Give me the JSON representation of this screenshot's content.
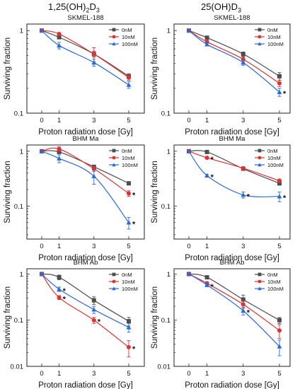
{
  "column_titles": {
    "left": {
      "base": "1,25(OH)",
      "sub1": "2",
      "mid": "D",
      "sub2": "3"
    },
    "right": {
      "base": "25(OH)D",
      "sub1": "3"
    }
  },
  "chart_data": [
    {
      "type": "line",
      "title": "SKMEL-188",
      "xlabel": "Proton radiation dose [Gy]",
      "ylabel": "Surviving fraction",
      "x": [
        0,
        1,
        3,
        5
      ],
      "yscale": "log",
      "ylim": [
        0.1,
        1.2
      ],
      "yticks": [
        1,
        0.1
      ],
      "ytick_labels": [
        "1",
        "0.1"
      ],
      "xticks": [
        0,
        1,
        3,
        5
      ],
      "legend_position": "top-right",
      "series": [
        {
          "name": "0nM",
          "color": "#4d4d4d",
          "marker": "square",
          "values": [
            1.0,
            0.83,
            0.52,
            0.28
          ],
          "errors": [
            0,
            0.03,
            0.04,
            0.02
          ],
          "stars": []
        },
        {
          "name": "10nM",
          "color": "#e03030",
          "marker": "circle",
          "values": [
            1.0,
            0.91,
            0.52,
            0.27
          ],
          "errors": [
            0,
            0.03,
            0.1,
            0.02
          ],
          "stars": []
        },
        {
          "name": "100nM",
          "color": "#2a6ad8",
          "marker": "triangle",
          "values": [
            1.0,
            0.66,
            0.41,
            0.22
          ],
          "errors": [
            0,
            0.06,
            0.04,
            0.02
          ],
          "stars": []
        }
      ]
    },
    {
      "type": "line",
      "title": "SKMEL-188",
      "xlabel": "Proton radiation dose [Gy]",
      "ylabel": "Surviving fraction",
      "x": [
        0,
        1,
        3,
        5
      ],
      "yscale": "log",
      "ylim": [
        0.1,
        1.2
      ],
      "yticks": [
        1,
        0.1
      ],
      "ytick_labels": [
        "1",
        "0.1"
      ],
      "xticks": [
        0,
        1,
        3,
        5
      ],
      "legend_position": "top-right",
      "series": [
        {
          "name": "0nM",
          "color": "#4d4d4d",
          "marker": "square",
          "values": [
            1.0,
            0.82,
            0.52,
            0.28
          ],
          "errors": [
            0,
            0.02,
            0.03,
            0.03
          ],
          "stars": []
        },
        {
          "name": "10nM",
          "color": "#e03030",
          "marker": "circle",
          "values": [
            1.0,
            0.73,
            0.45,
            0.23
          ],
          "errors": [
            0,
            0.03,
            0.03,
            0.02
          ],
          "stars": []
        },
        {
          "name": "100nM",
          "color": "#2a6ad8",
          "marker": "triangle",
          "values": [
            1.0,
            0.68,
            0.41,
            0.18
          ],
          "errors": [
            0,
            0.03,
            0.03,
            0.02
          ],
          "stars": [
            5
          ]
        }
      ]
    },
    {
      "type": "line",
      "title": "BHM Ma",
      "xlabel": "Proton radiation dose [Gy]",
      "ylabel": "Surviving fraction",
      "x": [
        0,
        1,
        3,
        5
      ],
      "yscale": "log",
      "ylim": [
        0.025,
        1.3
      ],
      "yticks": [
        1,
        0.1
      ],
      "ytick_labels": [
        "1",
        "0.1"
      ],
      "xticks": [
        0,
        1,
        3,
        5
      ],
      "legend_position": "top-right",
      "series": [
        {
          "name": "0nM",
          "color": "#4d4d4d",
          "marker": "square",
          "values": [
            1.0,
            0.97,
            0.52,
            0.26
          ],
          "errors": [
            0,
            0.05,
            0.03,
            0.01
          ],
          "stars": []
        },
        {
          "name": "10nM",
          "color": "#e03030",
          "marker": "circle",
          "values": [
            1.0,
            1.1,
            0.48,
            0.17
          ],
          "errors": [
            0,
            0.1,
            0.05,
            0.02
          ],
          "stars": [
            5
          ]
        },
        {
          "name": "100nM",
          "color": "#2a6ad8",
          "marker": "triangle",
          "values": [
            1.0,
            0.74,
            0.35,
            0.05
          ],
          "errors": [
            0,
            0.12,
            0.1,
            0.012
          ],
          "stars": [
            5
          ]
        }
      ]
    },
    {
      "type": "line",
      "title": "BHM Ma",
      "xlabel": "Proton radiation dose [Gy]",
      "ylabel": "Surviving fraction",
      "x": [
        0,
        1,
        3,
        5
      ],
      "yscale": "log",
      "ylim": [
        0.025,
        1.3
      ],
      "yticks": [
        1,
        0.1
      ],
      "ytick_labels": [
        "1",
        "0.1"
      ],
      "xticks": [
        0,
        1,
        3,
        5
      ],
      "legend_position": "top-right",
      "series": [
        {
          "name": "0nM",
          "color": "#4d4d4d",
          "marker": "square",
          "values": [
            1.0,
            0.97,
            0.48,
            0.26
          ],
          "errors": [
            0,
            0.03,
            0.03,
            0.02
          ],
          "stars": []
        },
        {
          "name": "10nM",
          "color": "#e03030",
          "marker": "circle",
          "values": [
            1.0,
            0.76,
            0.49,
            0.29
          ],
          "errors": [
            0,
            0.03,
            0.03,
            0.02
          ],
          "stars": [
            1
          ]
        },
        {
          "name": "100nM",
          "color": "#2a6ad8",
          "marker": "triangle",
          "values": [
            1.0,
            0.36,
            0.16,
            0.15
          ],
          "errors": [
            0,
            0.02,
            0.02,
            0.03
          ],
          "stars": [
            1,
            3,
            5
          ]
        }
      ]
    },
    {
      "type": "line",
      "title": "BHM Ab",
      "xlabel": "Proton radiation dose [Gy]",
      "ylabel": "Surviving fraction",
      "x": [
        0,
        1,
        3,
        5
      ],
      "yscale": "log",
      "ylim": [
        0.01,
        1.3
      ],
      "yticks": [
        1,
        0.1,
        0.01
      ],
      "ytick_labels": [
        "1",
        "0.1",
        "0.01"
      ],
      "xticks": [
        0,
        1,
        3,
        5
      ],
      "legend_position": "top-right",
      "series": [
        {
          "name": "0nM",
          "color": "#4d4d4d",
          "marker": "square",
          "values": [
            1.0,
            0.85,
            0.27,
            0.095
          ],
          "errors": [
            0,
            0.1,
            0.05,
            0.02
          ],
          "stars": []
        },
        {
          "name": "10nM",
          "color": "#e03030",
          "marker": "circle",
          "values": [
            1.0,
            0.31,
            0.1,
            0.026
          ],
          "errors": [
            0,
            0.03,
            0.015,
            0.01
          ],
          "stars": [
            1,
            3,
            5
          ]
        },
        {
          "name": "100nM",
          "color": "#2a6ad8",
          "marker": "triangle",
          "values": [
            1.0,
            0.47,
            0.17,
            0.07
          ],
          "errors": [
            0,
            0.05,
            0.03,
            0.015
          ],
          "stars": [
            1
          ]
        }
      ]
    },
    {
      "type": "line",
      "title": "BHM Ab",
      "xlabel": "Proton radiation dose [Gy]",
      "ylabel": "Surviving fraction",
      "x": [
        0,
        1,
        3,
        5
      ],
      "yscale": "log",
      "ylim": [
        0.01,
        1.3
      ],
      "yticks": [
        1,
        0.1,
        0.01
      ],
      "ytick_labels": [
        "1",
        "0.1",
        "0.01"
      ],
      "xticks": [
        0,
        1,
        3,
        5
      ],
      "legend_position": "top-right",
      "series": [
        {
          "name": "0nM",
          "color": "#4d4d4d",
          "marker": "square",
          "values": [
            1.0,
            0.85,
            0.28,
            0.1
          ],
          "errors": [
            0,
            0.05,
            0.07,
            0.015
          ],
          "stars": []
        },
        {
          "name": "10nM",
          "color": "#e03030",
          "marker": "circle",
          "values": [
            1.0,
            0.63,
            0.22,
            0.06
          ],
          "errors": [
            0,
            0.05,
            0.04,
            0.02
          ],
          "stars": []
        },
        {
          "name": "100nM",
          "color": "#2a6ad8",
          "marker": "triangle",
          "values": [
            1.0,
            0.58,
            0.16,
            0.027
          ],
          "errors": [
            0,
            0.05,
            0.03,
            0.01
          ],
          "stars": [
            1,
            3
          ]
        }
      ]
    }
  ]
}
